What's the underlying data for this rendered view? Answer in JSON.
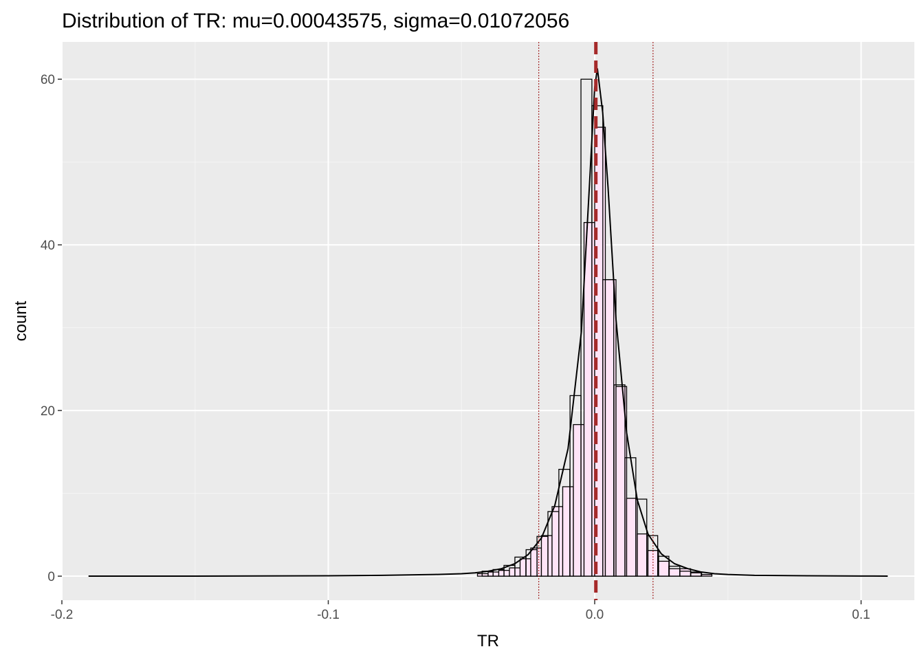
{
  "chart_data": {
    "type": "bar",
    "title": "Distribution of TR: mu=0.00043575, sigma=0.01072056",
    "xlabel": "TR",
    "ylabel": "count",
    "xlim": [
      -0.2,
      0.12
    ],
    "ylim": [
      -2.9,
      64.5
    ],
    "x_ticks": [
      {
        "value": -0.2,
        "label": "-0.2"
      },
      {
        "value": -0.1,
        "label": "-0.1"
      },
      {
        "value": 0.0,
        "label": "0.0"
      },
      {
        "value": 0.1,
        "label": "0.1"
      }
    ],
    "y_ticks": [
      {
        "value": 0,
        "label": "0"
      },
      {
        "value": 20,
        "label": "20"
      },
      {
        "value": 40,
        "label": "40"
      },
      {
        "value": 60,
        "label": "60"
      }
    ],
    "x_minor": [
      -0.15,
      -0.05,
      0.05
    ],
    "y_minor": [
      10,
      30,
      50
    ],
    "grid": true,
    "binwidth": 0.004,
    "histogram": {
      "fill": "#ffe4f7",
      "outline": "#000000",
      "bins": [
        {
          "x": -0.042,
          "count": 0.3
        },
        {
          "x": -0.038,
          "count": 0.5
        },
        {
          "x": -0.034,
          "count": 0.7
        },
        {
          "x": -0.03,
          "count": 1.0
        },
        {
          "x": -0.026,
          "count": 2.1
        },
        {
          "x": -0.022,
          "count": 3.4
        },
        {
          "x": -0.018,
          "count": 4.9
        },
        {
          "x": -0.014,
          "count": 8.4
        },
        {
          "x": -0.01,
          "count": 10.8
        },
        {
          "x": -0.006,
          "count": 18.3
        },
        {
          "x": -0.002,
          "count": 42.7
        },
        {
          "x": 0.002,
          "count": 54.2
        },
        {
          "x": 0.006,
          "count": 35.8
        },
        {
          "x": 0.01,
          "count": 22.9
        },
        {
          "x": 0.014,
          "count": 9.4
        },
        {
          "x": 0.018,
          "count": 5.1
        },
        {
          "x": 0.022,
          "count": 3.1
        },
        {
          "x": 0.026,
          "count": 1.8
        },
        {
          "x": 0.03,
          "count": 0.9
        },
        {
          "x": 0.034,
          "count": 0.9
        },
        {
          "x": 0.038,
          "count": 0.5
        },
        {
          "x": 0.042,
          "count": 0.2
        }
      ]
    },
    "outline_steps": [
      {
        "x": -0.0402,
        "count": 0.6
      },
      {
        "x": -0.0361,
        "count": 0.8
      },
      {
        "x": -0.032,
        "count": 1.3
      },
      {
        "x": -0.0279,
        "count": 2.3
      },
      {
        "x": -0.0237,
        "count": 3.2
      },
      {
        "x": -0.0196,
        "count": 4.8
      },
      {
        "x": -0.0155,
        "count": 7.8
      },
      {
        "x": -0.0114,
        "count": 12.9
      },
      {
        "x": -0.0072,
        "count": 21.8
      },
      {
        "x": -0.0031,
        "count": 60.0
      },
      {
        "x": 0.001,
        "count": 56.8
      },
      {
        "x": 0.0051,
        "count": 35.8
      },
      {
        "x": 0.0093,
        "count": 23.1
      },
      {
        "x": 0.0134,
        "count": 14.3
      },
      {
        "x": 0.0175,
        "count": 9.3
      },
      {
        "x": 0.0216,
        "count": 4.9
      },
      {
        "x": 0.0258,
        "count": 2.4
      },
      {
        "x": 0.0299,
        "count": 1.2
      },
      {
        "x": 0.034,
        "count": 0.6
      },
      {
        "x": 0.0381,
        "count": 0.4
      }
    ],
    "density_curve": {
      "x": [
        -0.19,
        -0.15,
        -0.1,
        -0.08,
        -0.06,
        -0.05,
        -0.045,
        -0.04,
        -0.035,
        -0.03,
        -0.025,
        -0.02,
        -0.015,
        -0.01,
        -0.005,
        -0.002,
        0.0,
        0.001,
        0.003,
        0.005,
        0.008,
        0.012,
        0.016,
        0.02,
        0.025,
        0.03,
        0.035,
        0.04,
        0.045,
        0.05,
        0.06,
        0.08,
        0.1,
        0.11
      ],
      "y": [
        0.0,
        0.0,
        0.05,
        0.1,
        0.2,
        0.3,
        0.4,
        0.6,
        0.9,
        1.5,
        2.6,
        4.6,
        8.5,
        15.4,
        29.5,
        47.0,
        59.0,
        61.3,
        56.0,
        47.0,
        31.0,
        17.3,
        9.2,
        5.1,
        2.7,
        1.5,
        0.9,
        0.5,
        0.3,
        0.2,
        0.1,
        0.05,
        0.02,
        0.0
      ]
    },
    "mean_line": {
      "x": 0.00043575,
      "color": "#a52a2a",
      "style": "dashed"
    },
    "sigma_lines": {
      "x": [
        -0.021,
        0.0219
      ],
      "color": "#a52a2a",
      "style": "dotted"
    },
    "colors": {
      "panel_background": "#ebebeb",
      "grid_major": "#ffffff",
      "grid_minor": "#f5f5f5",
      "text": "#000000",
      "tick_text": "#4d4d4d"
    }
  }
}
